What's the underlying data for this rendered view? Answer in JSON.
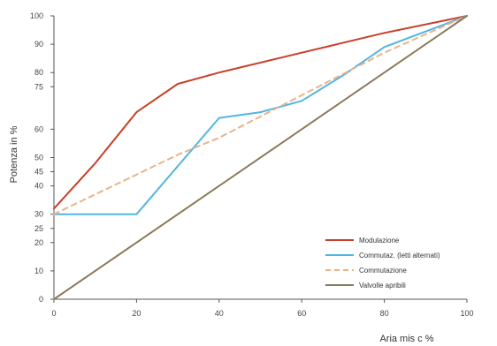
{
  "chart_data": {
    "type": "line",
    "title": "",
    "xlabel": "Aria mis c %",
    "ylabel": "Potenza in %",
    "xlim": [
      0,
      100
    ],
    "ylim": [
      0,
      100
    ],
    "x_ticks": [
      "0",
      "20",
      "40",
      "60",
      "80",
      "100"
    ],
    "y_ticks": [
      "0",
      "10",
      "20",
      "25",
      "30",
      "40",
      "45",
      "50",
      "60",
      "75",
      "80",
      "90",
      "100"
    ],
    "grid": false,
    "legend_position": "bottom-right",
    "series": [
      {
        "name": "Modulazione",
        "color": "#c8402a",
        "dash": "solid",
        "points": [
          [
            0,
            32
          ],
          [
            10,
            48
          ],
          [
            20,
            66
          ],
          [
            30,
            76
          ],
          [
            40,
            80
          ],
          [
            60,
            87
          ],
          [
            80,
            94
          ],
          [
            100,
            100
          ]
        ]
      },
      {
        "name": "Commutaz. (letti alternati)",
        "color": "#52b5e0",
        "dash": "solid",
        "points": [
          [
            0,
            30
          ],
          [
            20,
            30
          ],
          [
            40,
            64
          ],
          [
            50,
            66
          ],
          [
            60,
            70
          ],
          [
            70,
            79
          ],
          [
            80,
            89
          ],
          [
            100,
            100
          ]
        ]
      },
      {
        "name": "Commutazione",
        "color": "#e8b48a",
        "dash": "dashed",
        "points": [
          [
            0,
            30
          ],
          [
            10,
            37
          ],
          [
            20,
            44
          ],
          [
            30,
            51
          ],
          [
            40,
            57
          ],
          [
            60,
            72
          ],
          [
            80,
            87
          ],
          [
            100,
            100
          ]
        ]
      },
      {
        "name": "Valvolle apribili",
        "color": "#8b7a5a",
        "dash": "solid",
        "points": [
          [
            0,
            0
          ],
          [
            20,
            20
          ],
          [
            40,
            40
          ],
          [
            60,
            60
          ],
          [
            80,
            80
          ],
          [
            100,
            100
          ]
        ]
      }
    ]
  }
}
